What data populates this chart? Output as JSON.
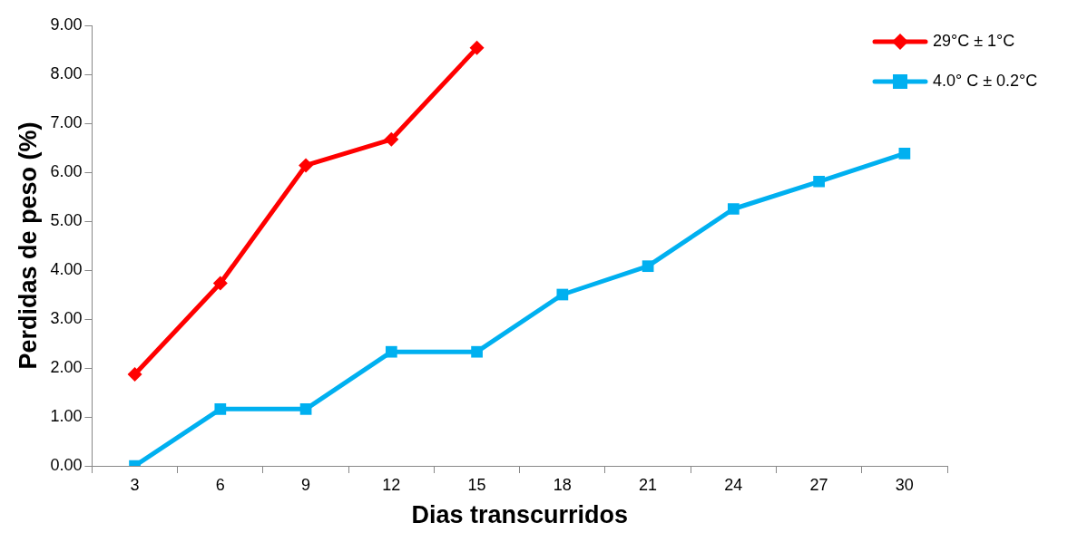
{
  "chart_data": {
    "type": "line",
    "xlabel": "Dias transcurridos",
    "ylabel": "Perdidas de peso (%)",
    "categories": [
      "3",
      "6",
      "9",
      "12",
      "15",
      "18",
      "21",
      "24",
      "27",
      "30"
    ],
    "ylim": [
      0,
      9
    ],
    "yticks": [
      {
        "value": 0,
        "label": "0.00"
      },
      {
        "value": 1,
        "label": "1.00"
      },
      {
        "value": 2,
        "label": "2.00"
      },
      {
        "value": 3,
        "label": "3.00"
      },
      {
        "value": 4,
        "label": "4.00"
      },
      {
        "value": 5,
        "label": "5.00"
      },
      {
        "value": 6,
        "label": "6.00"
      },
      {
        "value": 7,
        "label": "7.00"
      },
      {
        "value": 8,
        "label": "8.00"
      },
      {
        "value": 9,
        "label": "9.00"
      }
    ],
    "grid": false,
    "legend": "top right",
    "line_style": "solid",
    "series": [
      {
        "name": "29°C ± 1°C",
        "color": "#ff0000",
        "marker": "diamond",
        "values": [
          1.87,
          3.73,
          6.14,
          6.67,
          8.54,
          null,
          null,
          null,
          null,
          null
        ]
      },
      {
        "name": "4.0° C ± 0.2°C",
        "color": "#00b0f0",
        "marker": "square",
        "values": [
          0,
          1.16,
          1.16,
          2.33,
          2.33,
          3.5,
          4.08,
          5.25,
          5.81,
          6.38
        ]
      }
    ]
  }
}
